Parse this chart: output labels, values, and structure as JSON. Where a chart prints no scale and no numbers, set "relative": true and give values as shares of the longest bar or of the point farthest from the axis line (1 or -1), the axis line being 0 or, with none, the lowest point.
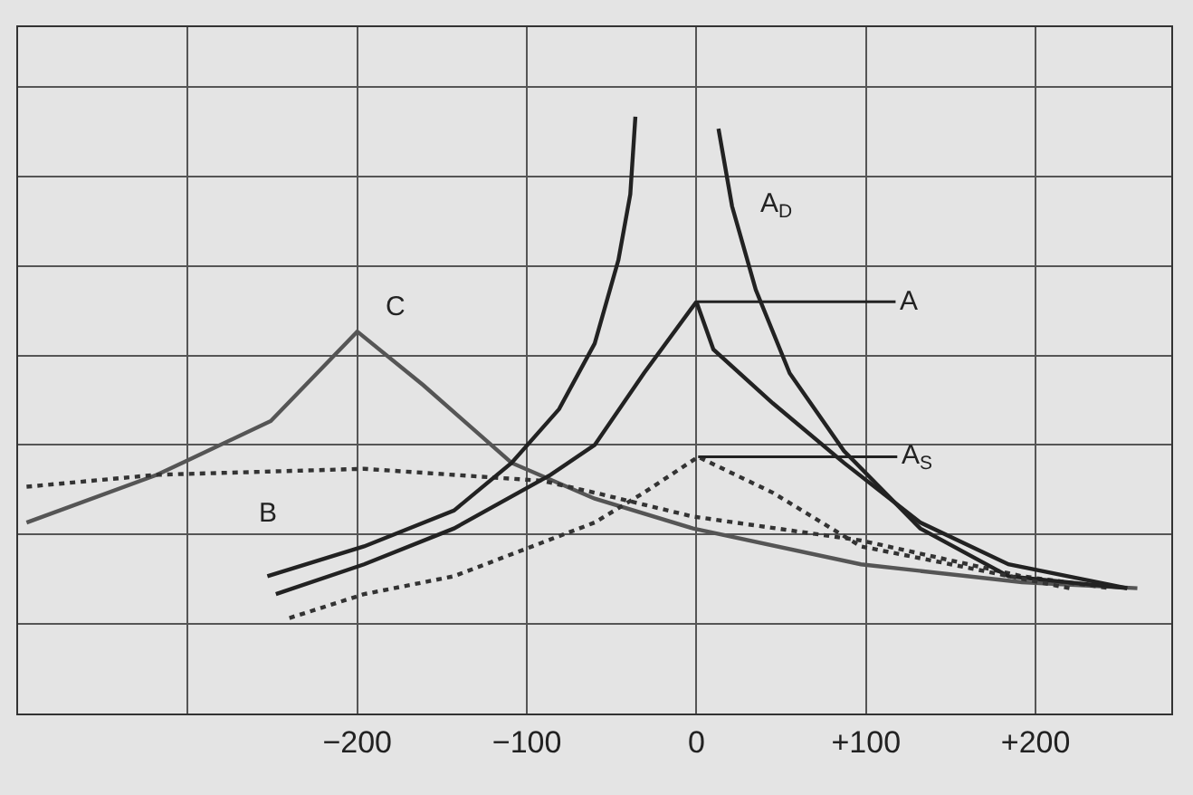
{
  "chart_data": {
    "type": "line",
    "relative": true,
    "grid": true,
    "tick_labels": "x",
    "marker": "none",
    "xlim": [
      -400,
      280
    ],
    "xticks": [
      {
        "value": -300,
        "label": null
      },
      {
        "value": -200,
        "label": "−200"
      },
      {
        "value": -100,
        "label": "−100"
      },
      0,
      {
        "value": 100,
        "label": "+100"
      },
      {
        "value": 200,
        "label": "+200"
      }
    ],
    "series": [
      {
        "color": "#555555",
        "line_style": "solid",
        "x": [
          -395,
          -318,
          -251,
          -200,
          -161,
          -109,
          -60,
          -2,
          97,
          192,
          260
        ],
        "values": [
          0.32,
          0.4,
          0.49,
          0.64,
          0.55,
          0.42,
          0.36,
          0.31,
          0.25,
          0.22,
          0.21
        ]
      },
      {
        "color": "#333333",
        "line_style": "dotted",
        "x": [
          -395,
          -318,
          -196,
          -91,
          -60,
          -2,
          97,
          192,
          244
        ],
        "values": [
          0.38,
          0.4,
          0.41,
          0.39,
          0.37,
          0.33,
          0.29,
          0.23,
          0.21
        ]
      },
      {
        "color": "#222222",
        "line_style": "solid",
        "x": [
          -253,
          -196,
          -143,
          -109,
          -81,
          -60,
          -46,
          -39,
          -36
        ],
        "values": [
          0.23,
          0.28,
          0.34,
          0.42,
          0.51,
          0.62,
          0.76,
          0.87,
          1
        ]
      },
      {
        "color": "#222222",
        "line_style": "solid",
        "x": [
          -248,
          -196,
          -143,
          -86,
          -60,
          -31,
          0,
          10,
          45,
          87,
          132,
          184,
          254
        ],
        "values": [
          0.2,
          0.25,
          0.31,
          0.4,
          0.45,
          0.57,
          0.69,
          0.61,
          0.52,
          0.42,
          0.32,
          0.25,
          0.21
        ]
      },
      {
        "color": "#222222",
        "line_style": "solid",
        "x": [
          13,
          21,
          35,
          55,
          87,
          132,
          184,
          254
        ],
        "values": [
          0.98,
          0.85,
          0.71,
          0.57,
          0.44,
          0.31,
          0.23,
          0.21
        ]
      },
      {
        "color": "#333333",
        "line_style": "dotted",
        "x": [
          -240,
          -196,
          -143,
          -60,
          -31,
          1,
          45,
          97,
          150,
          202,
          220
        ],
        "values": [
          0.16,
          0.2,
          0.23,
          0.32,
          0.37,
          0.43,
          0.37,
          0.28,
          0.25,
          0.22,
          0.21
        ]
      }
    ],
    "annotations": [
      {
        "text": "C",
        "x": -200,
        "y": 0.64
      },
      {
        "text": "B",
        "x": -253,
        "y": 0.39
      },
      {
        "text": "A$_{D}$",
        "x": 21,
        "y": 0.85
      },
      {
        "text": "A",
        "x": 0,
        "y": 0.69
      },
      {
        "text": "A$_{S}$",
        "x": 1,
        "y": 0.43
      }
    ]
  }
}
